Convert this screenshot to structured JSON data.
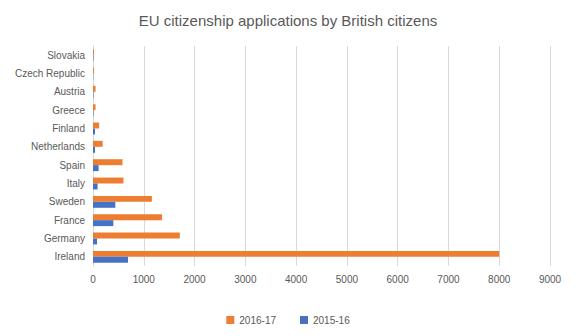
{
  "chart_data": {
    "type": "bar",
    "orientation": "horizontal",
    "title": "EU citizenship applications by British citizens",
    "categories": [
      "Ireland",
      "Germany",
      "France",
      "Sweden",
      "Italy",
      "Spain",
      "Netherlands",
      "Finland",
      "Greece",
      "Austria",
      "Czech Republic",
      "Slovakia"
    ],
    "series": [
      {
        "name": "2016-17",
        "color": "#ed7d31",
        "values": [
          8000,
          1710,
          1360,
          1160,
          600,
          580,
          190,
          120,
          50,
          50,
          20,
          20
        ]
      },
      {
        "name": "2015-16",
        "color": "#4472c4",
        "values": [
          690,
          80,
          400,
          440,
          90,
          110,
          40,
          40,
          10,
          10,
          5,
          10
        ]
      }
    ],
    "xlim": [
      0,
      9000
    ],
    "xticks": [
      0,
      1000,
      2000,
      3000,
      4000,
      5000,
      6000,
      7000,
      8000,
      9000
    ],
    "grid": true,
    "legend": "bottom"
  }
}
